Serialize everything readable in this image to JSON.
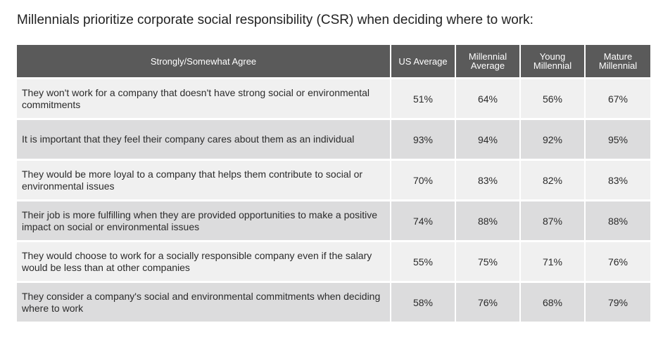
{
  "chart_data": {
    "type": "table",
    "title": "Millennials prioritize corporate social responsibility (CSR) when deciding where to work:",
    "columns": [
      "Strongly/Somewhat Agree",
      "US Average",
      "Millennial Average",
      "Young Millennial",
      "Mature Millennial"
    ],
    "header_lines": [
      [
        "Strongly/Somewhat Agree"
      ],
      [
        "US Average"
      ],
      [
        "Millennial",
        "Average"
      ],
      [
        "Young",
        "Millennial"
      ],
      [
        "Mature",
        "Millennial"
      ]
    ],
    "rows": [
      {
        "statement": "They won't work for a company that doesn't have strong social or environmental commitments",
        "values": [
          "51%",
          "64%",
          "56%",
          "67%"
        ]
      },
      {
        "statement": "It is important that they feel their company cares about them as an individual",
        "values": [
          "93%",
          "94%",
          "92%",
          "95%"
        ]
      },
      {
        "statement": "They would be more loyal to a company that helps them contribute to social or environmental issues",
        "values": [
          "70%",
          "83%",
          "82%",
          "83%"
        ]
      },
      {
        "statement": "Their job is more fulfilling when they are provided opportunities to make a positive impact on social or environmental issues",
        "values": [
          "74%",
          "88%",
          "87%",
          "88%"
        ]
      },
      {
        "statement": "They would choose to work for a socially responsible company even if the salary would be less than at other companies",
        "values": [
          "55%",
          "75%",
          "71%",
          "76%"
        ]
      },
      {
        "statement": "They consider a company's social and environmental commitments when deciding where to work",
        "values": [
          "58%",
          "76%",
          "68%",
          "79%"
        ]
      }
    ],
    "colors": {
      "header_bg": "#5a5a5a",
      "header_text": "#ffffff",
      "row_light": "#f0f0f0",
      "row_dark": "#dcdcdd"
    }
  }
}
